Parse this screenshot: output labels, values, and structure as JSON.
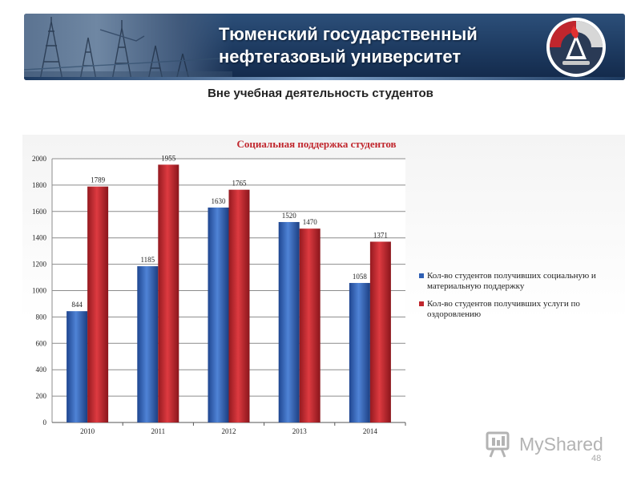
{
  "header": {
    "title_line1": "Тюменский государственный",
    "title_line2": "нефтегазовый университет"
  },
  "section_title": "Вне учебная деятельность студентов",
  "colors": {
    "series_blue": "#2f5fb3",
    "series_red": "#c0262d",
    "chart_title": "#c0262d",
    "banner": "#1d3a60"
  },
  "chart_data": {
    "type": "bar",
    "title": "Социальная поддержка студентов",
    "categories": [
      "2010",
      "2011",
      "2012",
      "2013",
      "2014"
    ],
    "series": [
      {
        "name": "Кол-во студентов получивших социальную и материальную поддержку",
        "color": "#2f5fb3",
        "values": [
          844,
          1185,
          1630,
          1520,
          1058
        ]
      },
      {
        "name": "Кол-во студентов получивших услуги по оздоровлению",
        "color": "#c0262d",
        "values": [
          1789,
          1955,
          1765,
          1470,
          1371
        ]
      }
    ],
    "ylim": [
      0,
      2000
    ],
    "yticks": [
      "0",
      "200",
      "400",
      "600",
      "800",
      "1000",
      "1200",
      "1400",
      "1600",
      "1800",
      "2000"
    ],
    "grid": true,
    "legend_position": "right"
  },
  "watermark": {
    "text": "MyShared"
  },
  "page_number": "48"
}
